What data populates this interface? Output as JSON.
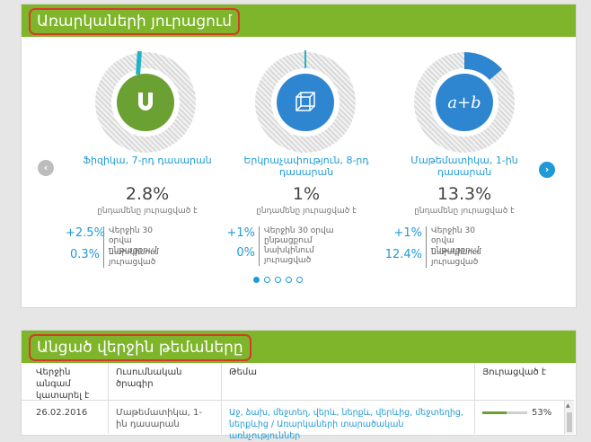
{
  "progress_section": {
    "title": "Առարկաների յուրացում",
    "cards": [
      {
        "subject": "Ֆիզիկա, 7-րդ դասարան",
        "percent_text": "2.8%",
        "percent_value": 2.8,
        "percent_note": "ընդամենը յուրացված է",
        "delta_30": "+2.5%",
        "delta_30_label": "Վերջին 30 օրվա ընթացքում",
        "prev": "0.3%",
        "prev_label": "նախկինում յուրացված",
        "icon": "magnet-icon",
        "color": "#6aa132"
      },
      {
        "subject": "Երկրաչափություն, 8-րդ դասարան",
        "percent_text": "1%",
        "percent_value": 1,
        "percent_note": "ընդամենը յուրացված է",
        "delta_30": "+1%",
        "delta_30_label": "Վերջին 30 օրվա ընթացքում",
        "prev": "0%",
        "prev_label": "նախկինում յուրացված",
        "icon": "cube-icon",
        "color": "#2e86d1"
      },
      {
        "subject": "Մաթեմատիկա, 1-ին դասարան",
        "percent_text": "13.3%",
        "percent_value": 13.3,
        "percent_note": "ընդամենը յուրացված է",
        "delta_30": "+1%",
        "delta_30_label": "Վերջին 30 օրվա ընթացքում",
        "prev": "12.4%",
        "prev_label": "նախկինում յուրացված",
        "icon_text": "a+b",
        "color": "#2e86d1"
      }
    ],
    "prev_arrow": "‹",
    "next_arrow": "›",
    "active_page": 1,
    "page_count": 5
  },
  "recent_section": {
    "title": "Անցած վերջին թեմաները",
    "headers": [
      "Վերջին անգամ կատարել է",
      "Ուսումնական ծրագիր",
      "Թեմա",
      "Յուրացված է"
    ],
    "rows": [
      {
        "date": "26.02.2016",
        "program": "Մաթեմատիկա, 1-ին դասարան",
        "topic": "Աջ, ձախ, մեջտեղ, վերև, ներքև, վերևից, մեջտեղից, ներքևից / Առարկաների տարածական առնչություններ",
        "percent_text": "53%",
        "percent_value": 53
      }
    ]
  },
  "colors": {
    "green": "#7eb52a",
    "blue": "#1f9ad6",
    "teal": "#1fb3c5",
    "highlight": "#d63a2a"
  }
}
